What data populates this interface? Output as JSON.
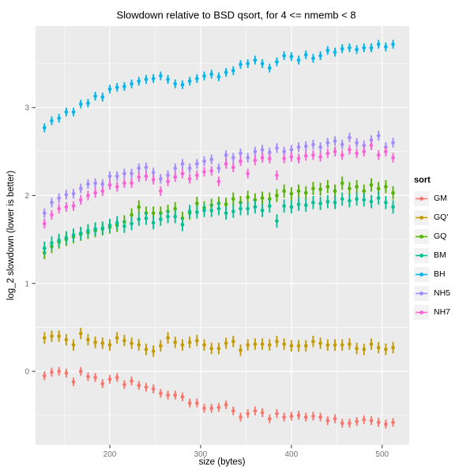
{
  "chart_data": {
    "type": "scatter",
    "mark": "pointrange",
    "title": "Slowdown relative to BSD qsort, for 4 <= nmemb < 8",
    "xlabel": "size (bytes)",
    "ylabel": "log_2 slowdown (lower is better)",
    "legend_title": "sort",
    "legend_position": "right",
    "panel_background": "#EBEBEB",
    "gridline_color": "#FFFFFF",
    "tick_color": "#333333",
    "tick_label_color": "#737373",
    "grid": true,
    "xlim": [
      118.2,
      529.8
    ],
    "ylim": [
      -0.835,
      3.927
    ],
    "x_ticks": [
      200,
      300,
      400,
      500
    ],
    "x_minor_ticks": [
      150,
      250,
      350,
      450
    ],
    "y_ticks": [
      0,
      1,
      2,
      3
    ],
    "y_minor_ticks": [
      -0.5,
      0.5,
      1.5,
      2.5,
      3.5
    ],
    "x": [
      128,
      136,
      144,
      152,
      160,
      168,
      176,
      184,
      192,
      200,
      208,
      216,
      224,
      232,
      240,
      248,
      256,
      264,
      272,
      280,
      288,
      296,
      304,
      312,
      320,
      328,
      336,
      344,
      352,
      360,
      368,
      376,
      384,
      392,
      400,
      408,
      416,
      424,
      432,
      440,
      448,
      456,
      464,
      472,
      480,
      488,
      496,
      504,
      512
    ],
    "series": [
      {
        "name": "GM",
        "color": "#F8766D",
        "err": 0.05,
        "values": [
          -0.05,
          -0.01,
          0.0,
          -0.02,
          -0.12,
          0.0,
          -0.06,
          -0.07,
          -0.14,
          -0.09,
          -0.07,
          -0.15,
          -0.11,
          -0.16,
          -0.18,
          -0.2,
          -0.25,
          -0.27,
          -0.27,
          -0.29,
          -0.36,
          -0.36,
          -0.42,
          -0.42,
          -0.41,
          -0.38,
          -0.45,
          -0.52,
          -0.48,
          -0.45,
          -0.47,
          -0.54,
          -0.48,
          -0.52,
          -0.51,
          -0.5,
          -0.52,
          -0.51,
          -0.52,
          -0.56,
          -0.54,
          -0.59,
          -0.59,
          -0.57,
          -0.55,
          -0.56,
          -0.58,
          -0.6,
          -0.58
        ]
      },
      {
        "name": "GQ'",
        "color": "#C49A00",
        "err": 0.065,
        "values": [
          0.38,
          0.4,
          0.4,
          0.36,
          0.3,
          0.43,
          0.36,
          0.33,
          0.32,
          0.3,
          0.38,
          0.35,
          0.32,
          0.3,
          0.25,
          0.23,
          0.29,
          0.38,
          0.33,
          0.3,
          0.33,
          0.35,
          0.3,
          0.26,
          0.26,
          0.32,
          0.34,
          0.24,
          0.3,
          0.31,
          0.31,
          0.3,
          0.34,
          0.31,
          0.29,
          0.29,
          0.29,
          0.34,
          0.32,
          0.3,
          0.3,
          0.3,
          0.31,
          0.26,
          0.25,
          0.31,
          0.27,
          0.25,
          0.27
        ]
      },
      {
        "name": "GQ",
        "color": "#53B400",
        "err": 0.075,
        "values": [
          1.35,
          1.42,
          1.47,
          1.5,
          1.53,
          1.56,
          1.58,
          1.6,
          1.62,
          1.64,
          1.66,
          1.7,
          1.78,
          1.87,
          1.8,
          1.8,
          1.8,
          1.82,
          1.85,
          1.74,
          1.8,
          1.91,
          1.86,
          1.89,
          1.91,
          1.9,
          1.96,
          1.92,
          1.98,
          1.95,
          1.97,
          1.96,
          2.0,
          2.05,
          2.02,
          2.05,
          2.03,
          2.08,
          2.07,
          2.1,
          2.05,
          2.14,
          2.08,
          2.1,
          2.05,
          2.12,
          2.08,
          2.1,
          2.03
        ]
      },
      {
        "name": "BM",
        "color": "#00C094",
        "err": 0.075,
        "values": [
          1.4,
          1.46,
          1.49,
          1.52,
          1.55,
          1.57,
          1.6,
          1.62,
          1.63,
          1.66,
          1.69,
          1.65,
          1.68,
          1.73,
          1.74,
          1.69,
          1.73,
          1.76,
          1.76,
          1.67,
          1.82,
          1.81,
          1.83,
          1.83,
          1.85,
          1.8,
          1.82,
          1.85,
          1.85,
          1.87,
          1.83,
          1.88,
          1.71,
          1.88,
          1.87,
          1.9,
          1.89,
          1.92,
          1.91,
          1.93,
          1.92,
          1.96,
          1.94,
          1.96,
          1.95,
          1.93,
          1.97,
          1.92,
          1.87
        ]
      },
      {
        "name": "BH",
        "color": "#00B6EB",
        "err": 0.05,
        "values": [
          2.77,
          2.85,
          2.88,
          2.95,
          2.95,
          3.04,
          3.05,
          3.13,
          3.12,
          3.21,
          3.23,
          3.24,
          3.27,
          3.3,
          3.32,
          3.33,
          3.36,
          3.32,
          3.27,
          3.26,
          3.3,
          3.33,
          3.36,
          3.38,
          3.35,
          3.4,
          3.42,
          3.49,
          3.5,
          3.54,
          3.5,
          3.45,
          3.52,
          3.59,
          3.58,
          3.54,
          3.6,
          3.56,
          3.59,
          3.65,
          3.63,
          3.67,
          3.68,
          3.66,
          3.68,
          3.68,
          3.72,
          3.69,
          3.72
        ]
      },
      {
        "name": "NH5",
        "color": "#A58AFF",
        "err": 0.055,
        "values": [
          1.8,
          1.92,
          1.97,
          2.01,
          2.02,
          2.08,
          2.13,
          2.14,
          2.13,
          2.22,
          2.22,
          2.25,
          2.25,
          2.31,
          2.32,
          2.26,
          2.19,
          2.23,
          2.31,
          2.36,
          2.31,
          2.36,
          2.39,
          2.41,
          2.31,
          2.46,
          2.43,
          2.48,
          2.43,
          2.5,
          2.52,
          2.49,
          2.54,
          2.5,
          2.52,
          2.55,
          2.56,
          2.58,
          2.55,
          2.6,
          2.62,
          2.58,
          2.66,
          2.6,
          2.57,
          2.63,
          2.68,
          2.55,
          2.6
        ]
      },
      {
        "name": "NH7",
        "color": "#FB61D7",
        "err": 0.055,
        "values": [
          1.68,
          1.78,
          1.85,
          1.87,
          1.88,
          1.95,
          2.0,
          2.03,
          2.05,
          2.12,
          2.1,
          2.14,
          2.14,
          2.21,
          2.22,
          2.18,
          2.05,
          2.16,
          2.21,
          2.25,
          2.19,
          2.23,
          2.27,
          2.28,
          2.16,
          2.36,
          2.32,
          2.39,
          2.25,
          2.4,
          2.43,
          2.42,
          2.23,
          2.42,
          2.44,
          2.42,
          2.45,
          2.46,
          2.44,
          2.48,
          2.5,
          2.46,
          2.52,
          2.48,
          2.5,
          2.57,
          2.46,
          2.5,
          2.43
        ]
      }
    ]
  }
}
